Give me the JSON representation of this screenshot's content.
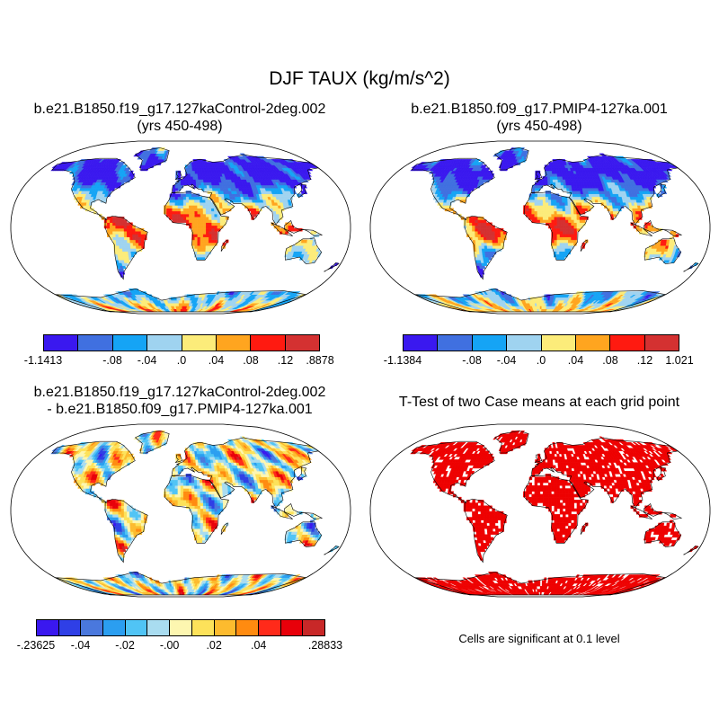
{
  "main_title": "DJF TAUX (kg/m/s^2)",
  "panels": [
    {
      "title_line1": "b.e21.B1850.f19_g17.127kaControl-2deg.002",
      "title_line2": "(yrs 450-498)",
      "colorbar": {
        "colors": [
          "#3a18ef",
          "#4070e0",
          "#15a4f5",
          "#9fd3f0",
          "#fcec7a",
          "#ffa51f",
          "#ff1a10",
          "#d43131"
        ],
        "tick_labels": [
          "-1.1413",
          "-.08",
          "-.04",
          ".0",
          ".04",
          ".08",
          ".12",
          ".8878"
        ]
      }
    },
    {
      "title_line1": "b.e21.B1850.f09_g17.PMIP4-127ka.001",
      "title_line2": "(yrs 450-498)",
      "colorbar": {
        "colors": [
          "#3a18ef",
          "#4070e0",
          "#15a4f5",
          "#9fd3f0",
          "#fcec7a",
          "#ffa51f",
          "#ff1a10",
          "#d43131"
        ],
        "tick_labels": [
          "-1.1384",
          "-.08",
          "-.04",
          ".0",
          ".04",
          ".08",
          ".12",
          "1.021"
        ]
      }
    },
    {
      "title_line1": "b.e21.B1850.f19_g17.127kaControl-2deg.002",
      "title_line2": "- b.e21.B1850.f09_g17.PMIP4-127ka.001",
      "colorbar": {
        "colors": [
          "#3a18ef",
          "#2f3fe6",
          "#4a78dd",
          "#2b9ef0",
          "#50c4f5",
          "#a9dcf0",
          "#fdf6b0",
          "#fde25a",
          "#fdbb2e",
          "#ff8b10",
          "#ff2a1a",
          "#e8000a",
          "#c82828"
        ],
        "tick_labels": [
          "-.23625",
          "-.04",
          "-.02",
          "-.00",
          ".02",
          ".04",
          ".28833"
        ]
      }
    },
    {
      "title_line1": "T-Test of two Case means at each grid point",
      "note": "Cells are significant at 0.1 level",
      "significance_color": "#ee0000"
    }
  ]
}
